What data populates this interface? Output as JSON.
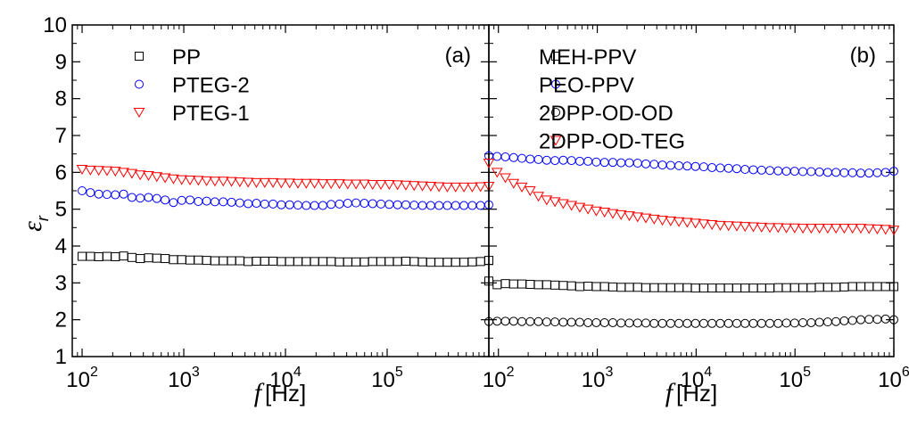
{
  "chart_data": [
    {
      "type": "scatter",
      "panel_label": "(a)",
      "xlabel_symbol": "f",
      "xlabel_unit": "[Hz]",
      "ylabel_symbol": "ε",
      "ylabel_subscript": "r",
      "x_scale": "log",
      "xlim": [
        80,
        1000000
      ],
      "ylim": [
        1,
        10
      ],
      "x_ticks": [
        {
          "value": 100,
          "base": "10",
          "exp": "2"
        },
        {
          "value": 1000,
          "base": "10",
          "exp": "3"
        },
        {
          "value": 10000,
          "base": "10",
          "exp": "4"
        },
        {
          "value": 100000,
          "base": "10",
          "exp": "5"
        }
      ],
      "y_ticks": [
        1,
        2,
        3,
        4,
        5,
        6,
        7,
        8,
        9,
        10
      ],
      "legend_position": "top-left",
      "series": [
        {
          "name": "PP",
          "marker": "square",
          "color": "#000000",
          "x_range": [
            100,
            1000000
          ],
          "points": 50,
          "y": [
            3.72,
            3.72,
            3.71,
            3.72,
            3.71,
            3.73,
            3.69,
            3.66,
            3.68,
            3.67,
            3.66,
            3.63,
            3.63,
            3.62,
            3.62,
            3.61,
            3.6,
            3.6,
            3.6,
            3.6,
            3.58,
            3.59,
            3.59,
            3.59,
            3.58,
            3.58,
            3.58,
            3.58,
            3.58,
            3.58,
            3.58,
            3.57,
            3.57,
            3.57,
            3.57,
            3.58,
            3.58,
            3.58,
            3.58,
            3.59,
            3.58,
            3.57,
            3.56,
            3.56,
            3.56,
            3.56,
            3.56,
            3.57,
            3.58,
            3.61
          ]
        },
        {
          "name": "PTEG-2",
          "marker": "circle",
          "color": "#0000ff",
          "x_range": [
            100,
            1000000
          ],
          "points": 50,
          "y": [
            5.5,
            5.45,
            5.41,
            5.4,
            5.39,
            5.41,
            5.32,
            5.3,
            5.32,
            5.29,
            5.25,
            5.18,
            5.24,
            5.25,
            5.21,
            5.22,
            5.2,
            5.2,
            5.19,
            5.17,
            5.15,
            5.16,
            5.14,
            5.14,
            5.12,
            5.12,
            5.11,
            5.1,
            5.1,
            5.1,
            5.13,
            5.14,
            5.16,
            5.17,
            5.16,
            5.15,
            5.14,
            5.13,
            5.12,
            5.12,
            5.11,
            5.1,
            5.1,
            5.1,
            5.1,
            5.1,
            5.1,
            5.1,
            5.1,
            5.12
          ]
        },
        {
          "name": "PTEG-1",
          "marker": "triangle-down",
          "color": "#ff0000",
          "x_range": [
            100,
            1000000
          ],
          "points": 50,
          "y": [
            6.08,
            6.06,
            6.05,
            6.04,
            6.03,
            6.0,
            5.97,
            5.93,
            5.91,
            5.88,
            5.85,
            5.82,
            5.8,
            5.79,
            5.78,
            5.77,
            5.76,
            5.76,
            5.75,
            5.74,
            5.73,
            5.72,
            5.72,
            5.72,
            5.71,
            5.71,
            5.7,
            5.7,
            5.7,
            5.69,
            5.69,
            5.69,
            5.68,
            5.68,
            5.68,
            5.67,
            5.67,
            5.67,
            5.66,
            5.65,
            5.64,
            5.63,
            5.62,
            5.61,
            5.6,
            5.6,
            5.6,
            5.6,
            5.61,
            5.62
          ]
        }
      ]
    },
    {
      "type": "scatter",
      "panel_label": "(b)",
      "xlabel_symbol": "f",
      "xlabel_unit": "[Hz]",
      "x_scale": "log",
      "xlim": [
        80,
        1000000
      ],
      "ylim": [
        1,
        10
      ],
      "x_ticks": [
        {
          "value": 100,
          "base": "10",
          "exp": "2"
        },
        {
          "value": 1000,
          "base": "10",
          "exp": "3"
        },
        {
          "value": 10000,
          "base": "10",
          "exp": "4"
        },
        {
          "value": 100000,
          "base": "10",
          "exp": "5"
        },
        {
          "value": 1000000,
          "base": "10",
          "exp": "6"
        }
      ],
      "legend_position": "top-left",
      "series": [
        {
          "name": "MEH-PPV",
          "marker": "square",
          "color": "#000000",
          "x_range": [
            80,
            1000000
          ],
          "points": 50,
          "y": [
            3.05,
            2.95,
            2.98,
            2.97,
            2.97,
            2.96,
            2.95,
            2.95,
            2.94,
            2.93,
            2.92,
            2.9,
            2.91,
            2.9,
            2.9,
            2.89,
            2.88,
            2.88,
            2.88,
            2.87,
            2.87,
            2.87,
            2.87,
            2.87,
            2.87,
            2.86,
            2.86,
            2.86,
            2.86,
            2.86,
            2.86,
            2.86,
            2.86,
            2.86,
            2.86,
            2.87,
            2.87,
            2.87,
            2.87,
            2.87,
            2.88,
            2.88,
            2.88,
            2.89,
            2.9,
            2.9,
            2.9,
            2.9,
            2.9,
            2.9
          ]
        },
        {
          "name": "PEO-PPV",
          "marker": "circle",
          "color": "#0000ff",
          "x_range": [
            80,
            1000000
          ],
          "points": 50,
          "y": [
            6.45,
            6.43,
            6.42,
            6.4,
            6.38,
            6.36,
            6.35,
            6.33,
            6.32,
            6.33,
            6.32,
            6.3,
            6.3,
            6.28,
            6.27,
            6.27,
            6.26,
            6.26,
            6.25,
            6.23,
            6.22,
            6.2,
            6.19,
            6.18,
            6.17,
            6.16,
            6.15,
            6.13,
            6.12,
            6.11,
            6.1,
            6.08,
            6.07,
            6.06,
            6.05,
            6.04,
            6.03,
            6.03,
            6.02,
            6.02,
            6.01,
            6.0,
            6.0,
            5.99,
            5.99,
            5.98,
            5.98,
            5.99,
            6.0,
            6.03
          ]
        },
        {
          "name": "2DPP-OD-OD",
          "marker": "circle",
          "color": "#000000",
          "x_range": [
            80,
            1000000
          ],
          "points": 50,
          "y": [
            1.95,
            1.96,
            1.96,
            1.96,
            1.95,
            1.95,
            1.95,
            1.94,
            1.94,
            1.93,
            1.93,
            1.93,
            1.92,
            1.92,
            1.92,
            1.92,
            1.91,
            1.91,
            1.91,
            1.91,
            1.9,
            1.9,
            1.9,
            1.9,
            1.9,
            1.9,
            1.9,
            1.9,
            1.9,
            1.9,
            1.9,
            1.9,
            1.9,
            1.9,
            1.9,
            1.9,
            1.91,
            1.91,
            1.92,
            1.92,
            1.93,
            1.94,
            1.95,
            1.97,
            1.98,
            2.0,
            2.01,
            2.01,
            2.02,
            2.0
          ]
        },
        {
          "name": "2DPP-OD-TEG",
          "marker": "triangle-down",
          "color": "#ff0000",
          "x_range": [
            80,
            1000000
          ],
          "points": 50,
          "y": [
            6.25,
            6.0,
            5.85,
            5.7,
            5.6,
            5.5,
            5.35,
            5.25,
            5.2,
            5.15,
            5.1,
            5.05,
            5.0,
            4.95,
            4.92,
            4.88,
            4.85,
            4.82,
            4.79,
            4.76,
            4.73,
            4.7,
            4.68,
            4.66,
            4.64,
            4.62,
            4.6,
            4.58,
            4.56,
            4.55,
            4.54,
            4.53,
            4.52,
            4.51,
            4.5,
            4.5,
            4.49,
            4.49,
            4.48,
            4.48,
            4.48,
            4.48,
            4.48,
            4.48,
            4.48,
            4.48,
            4.47,
            4.46,
            4.45,
            4.43
          ]
        }
      ]
    }
  ]
}
